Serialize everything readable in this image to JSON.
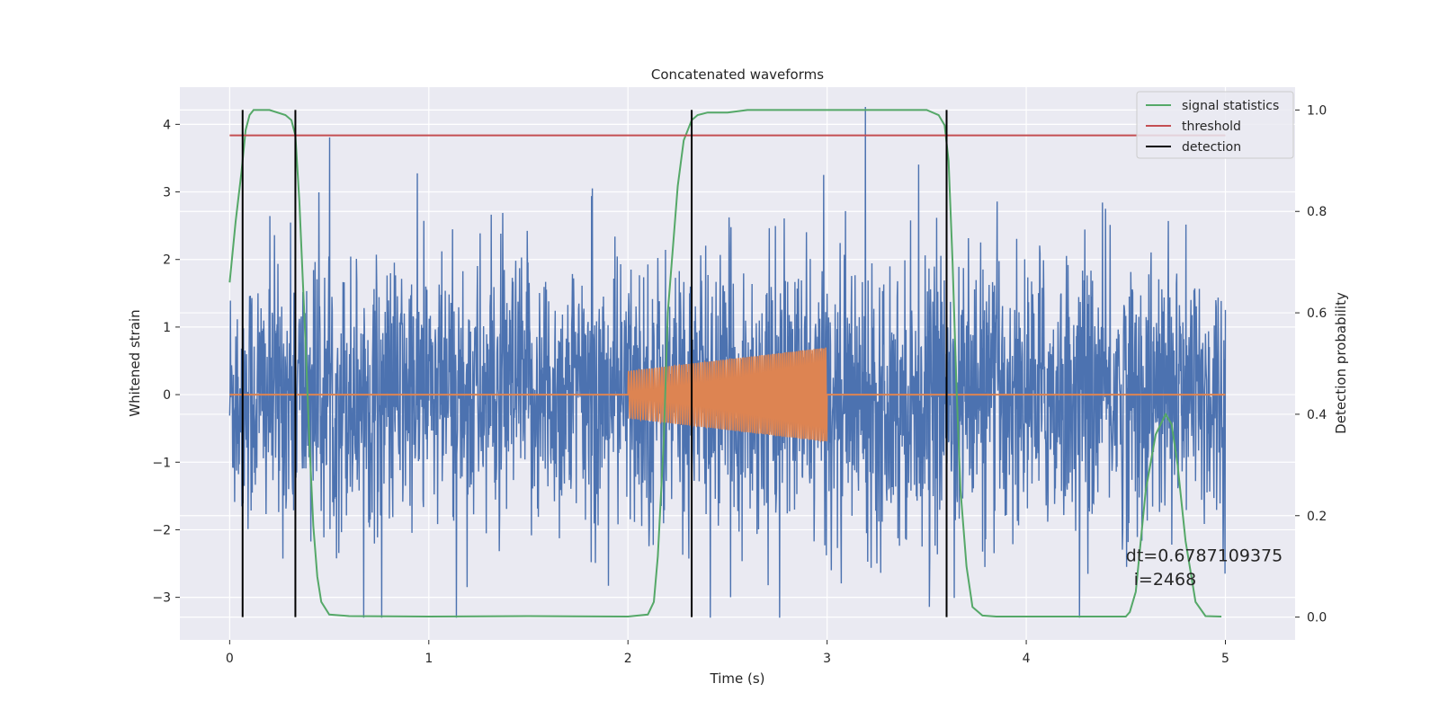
{
  "chart_data": {
    "type": "line",
    "title": "Concatenated waveforms",
    "xlabel": "Time (s)",
    "ylabel": "Whitened strain",
    "y2label": "Detection probability",
    "xlim": [
      -0.25,
      5.35
    ],
    "ylim": [
      -3.63,
      4.55
    ],
    "y2lim": [
      -0.045,
      1.045
    ],
    "xticks": [
      0,
      1,
      2,
      3,
      4,
      5
    ],
    "yticks": [
      -3,
      -2,
      -1,
      0,
      1,
      2,
      3,
      4
    ],
    "y2ticks": [
      0.0,
      0.2,
      0.4,
      0.6,
      0.8,
      1.0
    ],
    "grid": true,
    "legend_position": "top-right",
    "series": [
      {
        "name": "signal statistics",
        "color": "#55a868",
        "axis": "right",
        "x": [
          0.0,
          0.03,
          0.06,
          0.08,
          0.1,
          0.12,
          0.15,
          0.2,
          0.28,
          0.31,
          0.33,
          0.35,
          0.38,
          0.4,
          0.42,
          0.44,
          0.46,
          0.5,
          0.6,
          1.0,
          1.5,
          2.0,
          2.1,
          2.13,
          2.15,
          2.18,
          2.2,
          2.25,
          2.28,
          2.32,
          2.35,
          2.4,
          2.5,
          2.6,
          3.0,
          3.5,
          3.56,
          3.59,
          3.61,
          3.63,
          3.65,
          3.67,
          3.7,
          3.73,
          3.78,
          3.85,
          4.0,
          4.5,
          4.52,
          4.55,
          4.6,
          4.65,
          4.7,
          4.73,
          4.76,
          4.8,
          4.85,
          4.9,
          4.98
        ],
        "y": [
          0.66,
          0.78,
          0.88,
          0.96,
          0.99,
          1.0,
          1.0,
          1.0,
          0.99,
          0.98,
          0.95,
          0.82,
          0.55,
          0.35,
          0.18,
          0.08,
          0.03,
          0.005,
          0.002,
          0.001,
          0.002,
          0.001,
          0.005,
          0.03,
          0.12,
          0.35,
          0.6,
          0.85,
          0.94,
          0.98,
          0.99,
          0.995,
          0.995,
          1.0,
          1.0,
          1.0,
          0.99,
          0.97,
          0.9,
          0.7,
          0.45,
          0.25,
          0.1,
          0.02,
          0.003,
          0.001,
          0.001,
          0.001,
          0.01,
          0.05,
          0.25,
          0.36,
          0.4,
          0.38,
          0.3,
          0.15,
          0.03,
          0.002,
          0.001
        ]
      },
      {
        "name": "threshold",
        "color": "#c44e52",
        "axis": "right",
        "x": [
          0.0,
          5.0
        ],
        "y": [
          0.95,
          0.95
        ]
      },
      {
        "name": "detection",
        "color": "#000000",
        "axis": "right",
        "type": "vlines",
        "x": [
          0.065,
          0.33,
          2.32,
          3.6
        ],
        "ymin": 0.0,
        "ymax": 1.0
      },
      {
        "name": "",
        "color": "#4c72b0",
        "axis": "left",
        "type": "noise",
        "x_range": [
          0.0,
          5.0
        ],
        "amplitude": 1.0,
        "peak_max": 4.3,
        "peak_min": -3.3
      },
      {
        "name": "",
        "color": "#dd8452",
        "axis": "left",
        "type": "chirp",
        "x_range": [
          2.0,
          3.0
        ],
        "amp_range": [
          0.35,
          0.7
        ],
        "baseline": 0.0
      }
    ],
    "annotations": [
      {
        "text": "dt=0.6787109375",
        "x": 4.5,
        "y": 0.11
      },
      {
        "text": "i=2468",
        "x": 4.54,
        "y": 0.063
      }
    ]
  }
}
